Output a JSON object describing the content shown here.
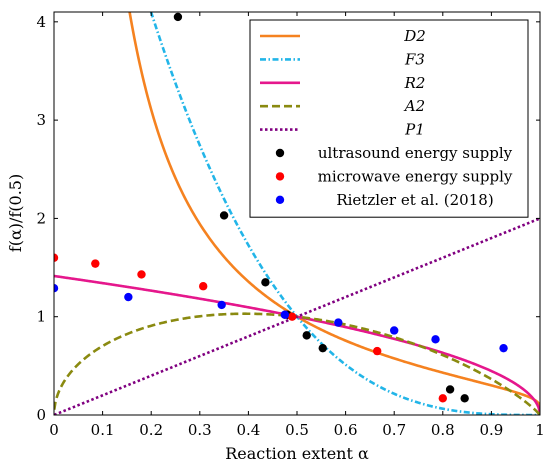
{
  "chart_data": {
    "type": "line",
    "xlabel": "Reaction extent α",
    "ylabel": "f(α)/f(0.5)",
    "xlim": [
      0,
      1
    ],
    "ylim": [
      0,
      4.1
    ],
    "xticks": [
      "0",
      "0.1",
      "0.2",
      "0.3",
      "0.4",
      "0.5",
      "0.6",
      "0.7",
      "0.8",
      "0.9",
      "1"
    ],
    "yticks": [
      "0",
      "1",
      "2",
      "3",
      "4"
    ],
    "legend_position": "top-right",
    "grid": false,
    "series": [
      {
        "name": "D2",
        "kind": "model-curve",
        "model": "D2",
        "color": "#f58220",
        "dash": "solid"
      },
      {
        "name": "F3",
        "kind": "model-curve",
        "model": "F3",
        "color": "#22b5e8",
        "dash": "dashdot"
      },
      {
        "name": "R2",
        "kind": "model-curve",
        "model": "R2",
        "color": "#e5178c",
        "dash": "solid"
      },
      {
        "name": "A2",
        "kind": "model-curve",
        "model": "A2",
        "color": "#8a8a10",
        "dash": "dashed"
      },
      {
        "name": "P1",
        "kind": "model-curve",
        "model": "P1",
        "color": "#800080",
        "dash": "dotted"
      },
      {
        "name": "ultrasound energy supply",
        "kind": "points",
        "color": "#000000",
        "points": [
          [
            0.255,
            4.05
          ],
          [
            0.35,
            2.03
          ],
          [
            0.435,
            1.35
          ],
          [
            0.48,
            1.02
          ],
          [
            0.52,
            0.81
          ],
          [
            0.553,
            0.68
          ],
          [
            0.815,
            0.26
          ],
          [
            0.845,
            0.17
          ]
        ]
      },
      {
        "name": "microwave energy supply",
        "kind": "points",
        "color": "#ff0000",
        "points": [
          [
            0.0,
            1.6
          ],
          [
            0.085,
            1.54
          ],
          [
            0.18,
            1.43
          ],
          [
            0.307,
            1.31
          ],
          [
            0.49,
            1.0
          ],
          [
            0.665,
            0.65
          ],
          [
            0.8,
            0.17
          ]
        ]
      },
      {
        "name": "Rietzler et al. (2018)",
        "kind": "points",
        "color": "#0000ff",
        "points": [
          [
            0.0,
            1.29
          ],
          [
            0.153,
            1.2
          ],
          [
            0.345,
            1.12
          ],
          [
            0.475,
            1.02
          ],
          [
            0.585,
            0.94
          ],
          [
            0.7,
            0.86
          ],
          [
            0.785,
            0.77
          ],
          [
            0.925,
            0.68
          ]
        ]
      }
    ]
  }
}
